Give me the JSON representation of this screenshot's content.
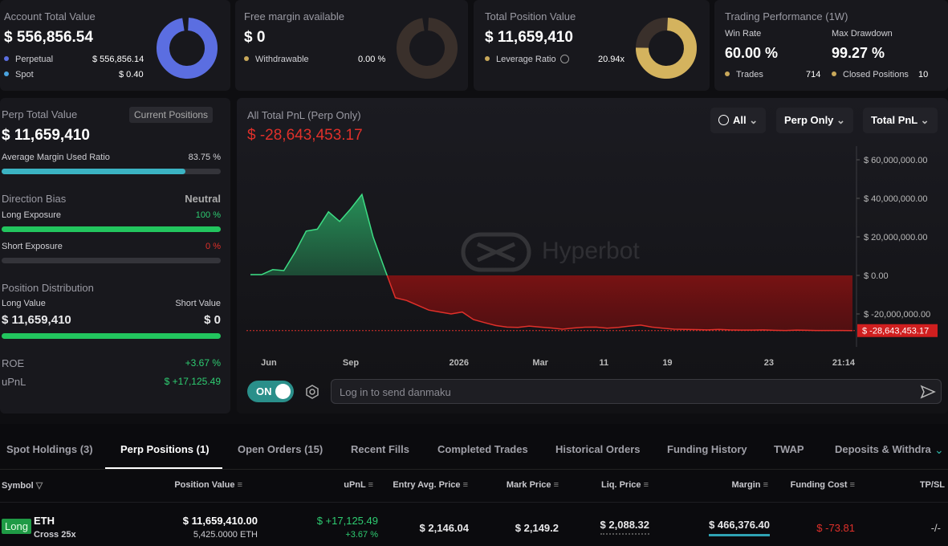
{
  "cards": {
    "account": {
      "title": "Account Total Value",
      "value": "$ 556,856.54",
      "rows": [
        {
          "label": "Perpetual",
          "value": "$ 556,856.14"
        },
        {
          "label": "Spot",
          "value": "$ 0.40"
        }
      ]
    },
    "margin": {
      "title": "Free margin available",
      "value": "$ 0",
      "rows": [
        {
          "label": "Withdrawable",
          "value": "0.00 %"
        }
      ]
    },
    "position": {
      "title": "Total Position Value",
      "value": "$ 11,659,410",
      "rows": [
        {
          "label": "Leverage Ratio",
          "value": "20.94x"
        }
      ]
    },
    "performance": {
      "title": "Trading Performance (1W)",
      "win_rate_label": "Win Rate",
      "win_rate": "60.00 %",
      "drawdown_label": "Max Drawdown",
      "drawdown": "99.27 %",
      "trades_label": "Trades",
      "trades": "714",
      "closed_label": "Closed Positions",
      "closed": "10"
    }
  },
  "perp": {
    "title": "Perp Total Value",
    "button": "Current Positions",
    "value": "$ 11,659,410",
    "margin_ratio": {
      "label": "Average Margin Used Ratio",
      "value": 83.75,
      "value_label": "83.75 %"
    },
    "bias": {
      "title": "Direction Bias",
      "value": "Neutral"
    },
    "long": {
      "label": "Long Exposure",
      "value": 100,
      "value_label": "100 %"
    },
    "short": {
      "label": "Short Exposure",
      "value": 0,
      "value_label": "0 %"
    },
    "distribution": {
      "title": "Position Distribution",
      "long_label": "Long Value",
      "short_label": "Short Value",
      "long_value": "$ 11,659,410",
      "short_value": "$ 0"
    },
    "roe": {
      "label": "ROE",
      "value": "+3.67 %"
    },
    "upnl": {
      "label": "uPnL",
      "value": "$ +17,125.49"
    }
  },
  "pnl_chart": {
    "type": "area",
    "title": "All Total PnL (Perp Only)",
    "current_label": "$ -28,643,453.17",
    "current_value": -28643453.17,
    "filters": [
      "All",
      "Perp Only",
      "Total PnL"
    ],
    "watermark": "Hyperbot",
    "up_color": "#3ddc84",
    "down_color": "#e0302a",
    "values": [
      400000,
      400000,
      3000000,
      2500000,
      12000000,
      23000000,
      24000000,
      33000000,
      28000000,
      34600000,
      42000000,
      20000000,
      4000000,
      -11600000,
      -13000000,
      -15500000,
      -18000000,
      -19000000,
      -20000000,
      -19000000,
      -22900000,
      -24500000,
      -26000000,
      -26800000,
      -27000000,
      -26300000,
      -26800000,
      -27300000,
      -27900000,
      -27300000,
      -26900000,
      -26800000,
      -27400000,
      -27000000,
      -26300000,
      -25800000,
      -26800000,
      -27400000,
      -27900000,
      -28000000,
      -28100000,
      -28300000,
      -28000000,
      -28300000,
      -28400000,
      -28400000,
      -28300000,
      -28500000,
      -28600000,
      -28400000,
      -28500000,
      -28600000,
      -28600000,
      -28600000,
      -28643453.17
    ],
    "xlim": [
      0,
      54
    ],
    "xticks": [
      {
        "value": 1.65,
        "label": "Jun"
      },
      {
        "value": 9,
        "label": "Sep"
      },
      {
        "value": 18.7,
        "label": "2026"
      },
      {
        "value": 26,
        "label": "Mar"
      },
      {
        "value": 31.7,
        "label": "11"
      },
      {
        "value": 37.4,
        "label": "19"
      },
      {
        "value": 46.5,
        "label": "23"
      },
      {
        "value": 53.2,
        "label": "21:14"
      }
    ],
    "ylim": [
      -40000000,
      66000000
    ],
    "yticks": [
      {
        "value": 60000000,
        "label": "$ 60,000,000.00"
      },
      {
        "value": 40000000,
        "label": "$ 40,000,000.00"
      },
      {
        "value": 20000000,
        "label": "$ 20,000,000.00"
      },
      {
        "value": 0,
        "label": "$ 0.00"
      },
      {
        "value": -20000000,
        "label": "$ -20,000,000.00"
      }
    ]
  },
  "danmaku": {
    "toggle": "ON",
    "placeholder": "Log in to send danmaku"
  },
  "tabs": [
    "Spot Holdings (3)",
    "Perp Positions (1)",
    "Open Orders (15)",
    "Recent Fills",
    "Completed Trades",
    "Historical Orders",
    "Funding History",
    "TWAP",
    "Deposits & Withdra"
  ],
  "table": {
    "headers": [
      "Symbol",
      "Position Value",
      "uPnL",
      "Entry Avg. Price",
      "Mark Price",
      "Liq. Price",
      "Margin",
      "Funding Cost",
      "TP/SL"
    ],
    "row": {
      "side": "Long",
      "symbol": "ETH",
      "mode": "Cross 25x",
      "position_value": "$ 11,659,410.00",
      "size": "5,425.0000 ETH",
      "upnl": "$ +17,125.49",
      "upnl_pct": "+3.67 %",
      "entry": "$ 2,146.04",
      "mark": "$ 2,149.2",
      "liq": "$ 2,088.32",
      "margin": "$ 466,376.40",
      "funding": "$ -73.81",
      "tpsl": "-/-"
    }
  }
}
